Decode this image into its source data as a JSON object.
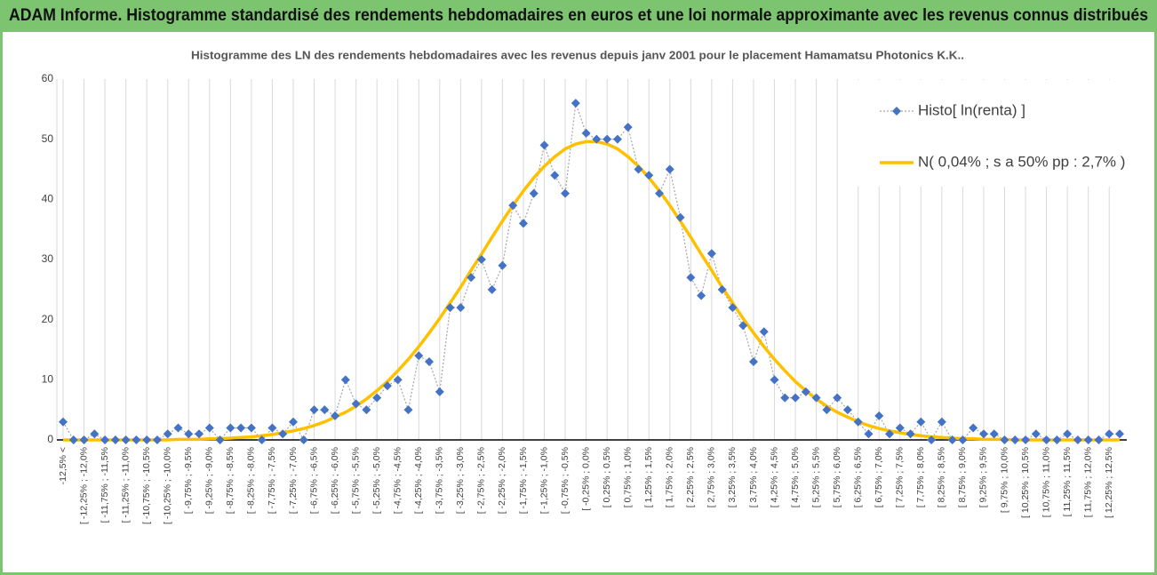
{
  "header": {
    "title": "ADAM Informe. Histogramme standardisé des rendements hebdomadaires en euros et une loi normale approximante avec les revenus connus distribués"
  },
  "chart_data": {
    "type": "line",
    "title": "Histogramme des LN des rendements hebdomadaires avec les revenus depuis janv 2001 pour le placement Hamamatsu Photonics K.K..",
    "categories": [
      "-12,5% <",
      null,
      "[ -12,25% ; -12,0%",
      null,
      "[ -11,75% ; -11,5%",
      null,
      "[ -11,25% ; -11,0%",
      null,
      "[ -10,75% ; -10,5%",
      null,
      "[ -10,25% ; -10,0%",
      null,
      "[ -9,75% ; -9,5%",
      null,
      "[ -9,25% ; -9,0%",
      null,
      "[ -8,75% ; -8,5%",
      null,
      "[ -8,25% ; -8,0%",
      null,
      "[ -7,75% ; -7,5%",
      null,
      "[ -7,25% ; -7,0%",
      null,
      "[ -6,75% ; -6,5%",
      null,
      "[ -6,25% ; -6,0%",
      null,
      "[ -5,75% ; -5,5%",
      null,
      "[ -5,25% ; -5,0%",
      null,
      "[ -4,75% ; -4,5%",
      null,
      "[ -4,25% ; -4,0%",
      null,
      "[ -3,75% ; -3,5%",
      null,
      "[ -3,25% ; -3,0%",
      null,
      "[ -2,75% ; -2,5%",
      null,
      "[ -2,25% ; -2,0%",
      null,
      "[ -1,75% ; -1,5%",
      null,
      "[ -1,25% ; -1,0%",
      null,
      "[ -0,75% ; -0,5%",
      null,
      "[ -0,25% ; 0,0%",
      null,
      "[ 0,25% ; 0,5%",
      null,
      "[ 0,75% ; 1,0%",
      null,
      "[ 1,25% ; 1,5%",
      null,
      "[ 1,75% ; 2,0%",
      null,
      "[ 2,25% ; 2,5%",
      null,
      "[ 2,75% ; 3,0%",
      null,
      "[ 3,25% ; 3,5%",
      null,
      "[ 3,75% ; 4,0%",
      null,
      "[ 4,25% ; 4,5%",
      null,
      "[ 4,75% ; 5,0%",
      null,
      "[ 5,25% ; 5,5%",
      null,
      "[ 5,75% ; 6,0%",
      null,
      "[ 6,25% ; 6,5%",
      null,
      "[ 6,75% ; 7,0%",
      null,
      "[ 7,25% ; 7,5%",
      null,
      "[ 7,75% ; 8,0%",
      null,
      "[ 8,25% ; 8,5%",
      null,
      "[ 8,75% ; 9,0%",
      null,
      "[ 9,25% ; 9,5%",
      null,
      "[ 9,75% ; 10,0%",
      null,
      "[ 10,25% ; 10,5%",
      null,
      "[ 10,75% ; 11,0%",
      null,
      "[ 11,25% ; 11,5%",
      null,
      "[ 11,75% ; 12,0%",
      null,
      "[ 12,25% ; 12,5%",
      null
    ],
    "series": [
      {
        "name": "Histo[ ln(renta) ]",
        "color": "#4472c4",
        "values": [
          3,
          0,
          0,
          1,
          0,
          0,
          0,
          0,
          0,
          0,
          1,
          2,
          1,
          1,
          2,
          0,
          2,
          2,
          2,
          0,
          2,
          1,
          3,
          0,
          5,
          5,
          4,
          10,
          6,
          5,
          7,
          9,
          10,
          5,
          14,
          13,
          8,
          22,
          22,
          27,
          30,
          25,
          29,
          39,
          36,
          41,
          49,
          44,
          41,
          56,
          51,
          50,
          50,
          50,
          52,
          45,
          44,
          41,
          45,
          37,
          27,
          24,
          31,
          25,
          22,
          19,
          13,
          18,
          10,
          7,
          7,
          8,
          7,
          5,
          7,
          5,
          3,
          1,
          4,
          1,
          2,
          1,
          3,
          0,
          3,
          0,
          0,
          2,
          1,
          1,
          0,
          0,
          0,
          1,
          0,
          0,
          1,
          0,
          0,
          0,
          1,
          1
        ]
      },
      {
        "name": "N( 0,04% ; s a 50% pp : 2,7% )",
        "color": "#ffc000",
        "values": [
          0,
          0,
          0,
          0,
          0,
          0,
          0,
          0,
          0,
          0,
          0,
          0.1,
          0.1,
          0.1,
          0.2,
          0.2,
          0.3,
          0.4,
          0.5,
          0.7,
          0.9,
          1.2,
          1.5,
          1.9,
          2.4,
          3.0,
          3.8,
          4.6,
          5.6,
          6.8,
          8.2,
          9.7,
          11.5,
          13.4,
          15.5,
          17.8,
          20.2,
          22.8,
          25.4,
          28.2,
          30.9,
          33.7,
          36.4,
          39.0,
          41.4,
          43.6,
          45.5,
          47.1,
          48.4,
          49.2,
          49.6,
          49.6,
          49.2,
          48.4,
          47.1,
          45.5,
          43.6,
          41.4,
          39.0,
          36.4,
          33.7,
          30.9,
          28.2,
          25.4,
          22.8,
          20.2,
          17.8,
          15.5,
          13.4,
          11.5,
          9.7,
          8.2,
          6.8,
          5.6,
          4.6,
          3.8,
          3.0,
          2.4,
          1.9,
          1.5,
          1.2,
          0.9,
          0.7,
          0.5,
          0.4,
          0.3,
          0.2,
          0.2,
          0.1,
          0.1,
          0.1,
          0,
          0,
          0,
          0,
          0,
          0,
          0,
          0,
          0,
          0,
          0
        ]
      }
    ],
    "ylim": [
      0,
      60
    ],
    "yticks": [
      0,
      10,
      20,
      30,
      40,
      50,
      60
    ],
    "grid": true,
    "legend": "upper right"
  }
}
